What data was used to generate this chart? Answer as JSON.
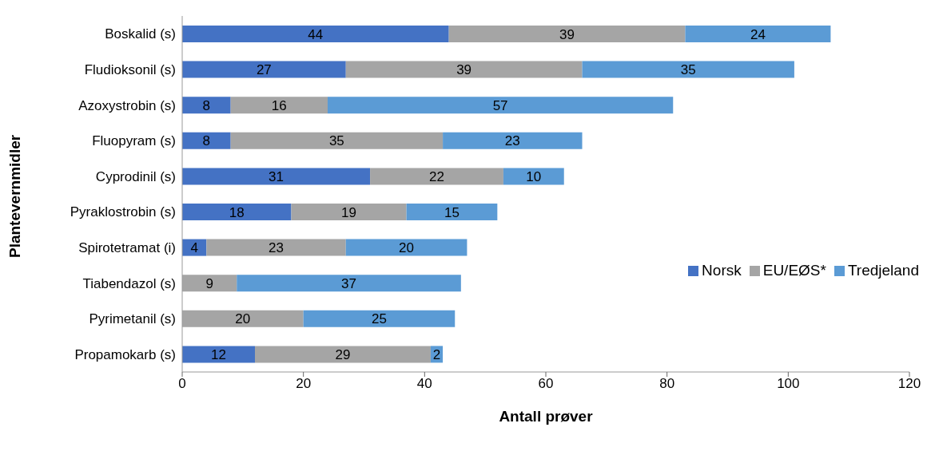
{
  "chart_data": {
    "type": "bar",
    "orientation": "horizontal",
    "stacked": true,
    "xlabel": "Antall prøver",
    "ylabel": "Plantevernmidler",
    "categories": [
      "Boskalid (s)",
      "Fludioksonil (s)",
      "Azoxystrobin (s)",
      "Fluopyram (s)",
      "Cyprodinil (s)",
      "Pyraklostrobin (s)",
      "Spirotetramat (i)",
      "Tiabendazol (s)",
      "Pyrimetanil (s)",
      "Propamokarb (s)"
    ],
    "series": [
      {
        "name": "Norsk",
        "color": "#4472c4",
        "values": [
          44,
          27,
          8,
          8,
          31,
          18,
          4,
          null,
          null,
          12
        ]
      },
      {
        "name": "EU/EØS*",
        "color": "#a5a5a5",
        "values": [
          39,
          39,
          16,
          35,
          22,
          19,
          23,
          9,
          20,
          29
        ]
      },
      {
        "name": "Tredjeland",
        "color": "#5b9bd5",
        "values": [
          24,
          35,
          57,
          23,
          10,
          15,
          20,
          37,
          25,
          2
        ]
      }
    ],
    "xlim": [
      0,
      120
    ],
    "xticks": [
      0,
      20,
      40,
      60,
      80,
      100,
      120
    ],
    "data_labels": true,
    "legend": "right",
    "grid": false
  }
}
